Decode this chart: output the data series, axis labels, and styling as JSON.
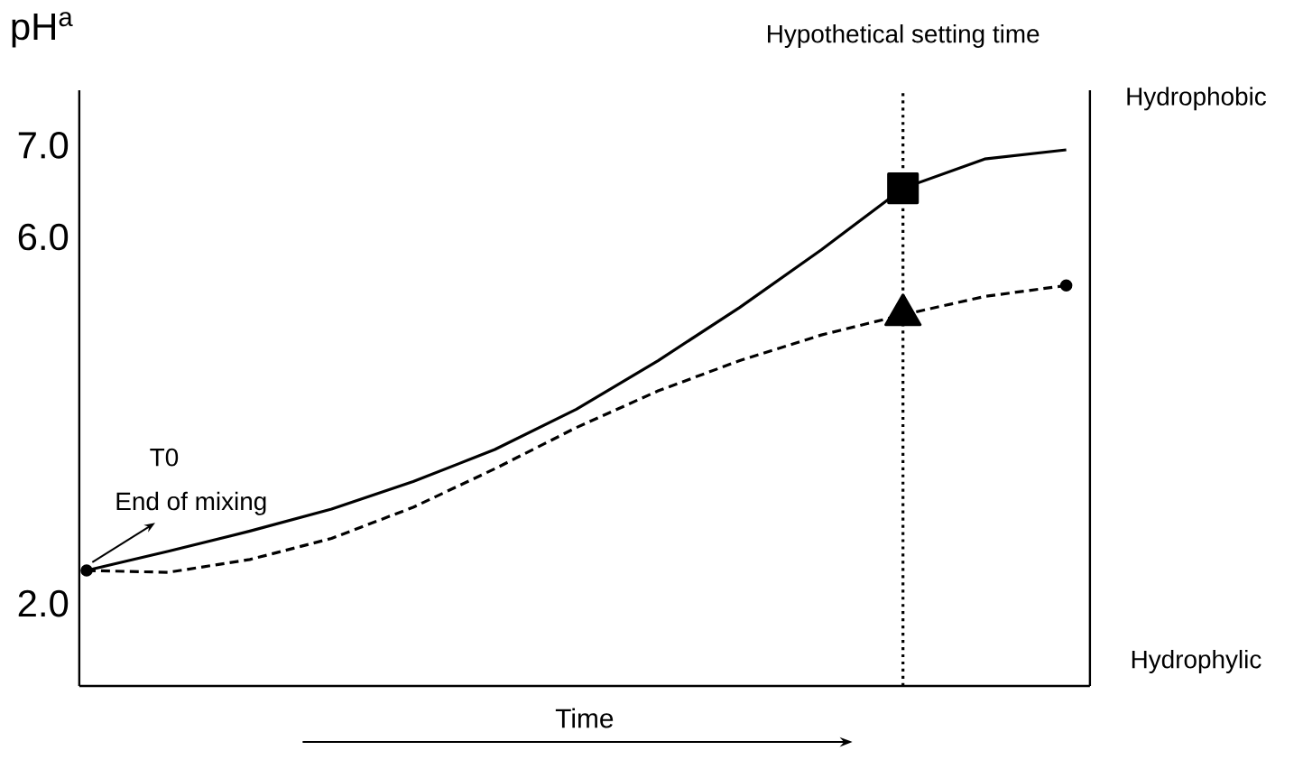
{
  "chart_data": {
    "type": "line",
    "ylabel": "pH$^{a}$",
    "xlabel": "Time",
    "categories": [
      null,
      null,
      null,
      null,
      null,
      null,
      null,
      null,
      null,
      null,
      null,
      null,
      null
    ],
    "ylim": [
      1.1,
      7.6
    ],
    "yticks": [
      {
        "value": 2,
        "label": "2.0"
      },
      {
        "value": 6,
        "label": "6.0"
      },
      {
        "value": 7,
        "label": "7.0"
      }
    ],
    "tick_labels": "y",
    "grid": false,
    "series": [
      {
        "color": "#000000",
        "line_style": "solid",
        "marker": "none",
        "values": [
          2.36,
          2.57,
          2.79,
          3.03,
          3.33,
          3.68,
          4.12,
          4.65,
          5.23,
          5.86,
          6.53,
          6.85,
          6.95
        ]
      },
      {
        "color": "#000000",
        "line_style": "dashed",
        "marker": "none",
        "values": [
          2.36,
          2.34,
          2.48,
          2.71,
          3.05,
          3.47,
          3.92,
          4.32,
          4.65,
          4.93,
          5.15,
          5.35,
          5.47
        ]
      },
      {
        "type": "scatter",
        "color": "#000000",
        "marker": "square",
        "values": [
          null,
          null,
          null,
          null,
          null,
          null,
          null,
          null,
          null,
          null,
          6.53,
          null,
          null
        ]
      },
      {
        "type": "scatter",
        "color": "#000000",
        "marker": "triangle",
        "values": [
          null,
          null,
          null,
          null,
          null,
          null,
          null,
          null,
          null,
          null,
          5.15,
          null,
          null
        ]
      },
      {
        "type": "scatter",
        "color": "#000000",
        "marker": "circle",
        "values": [
          2.36,
          null,
          null,
          null,
          null,
          null,
          null,
          null,
          null,
          null,
          null,
          null,
          5.47
        ]
      }
    ],
    "annotations": [
      "T0",
      "End of mixing",
      "Hydrophobic",
      "Hydrophylic",
      "Hypothetical setting time"
    ]
  }
}
